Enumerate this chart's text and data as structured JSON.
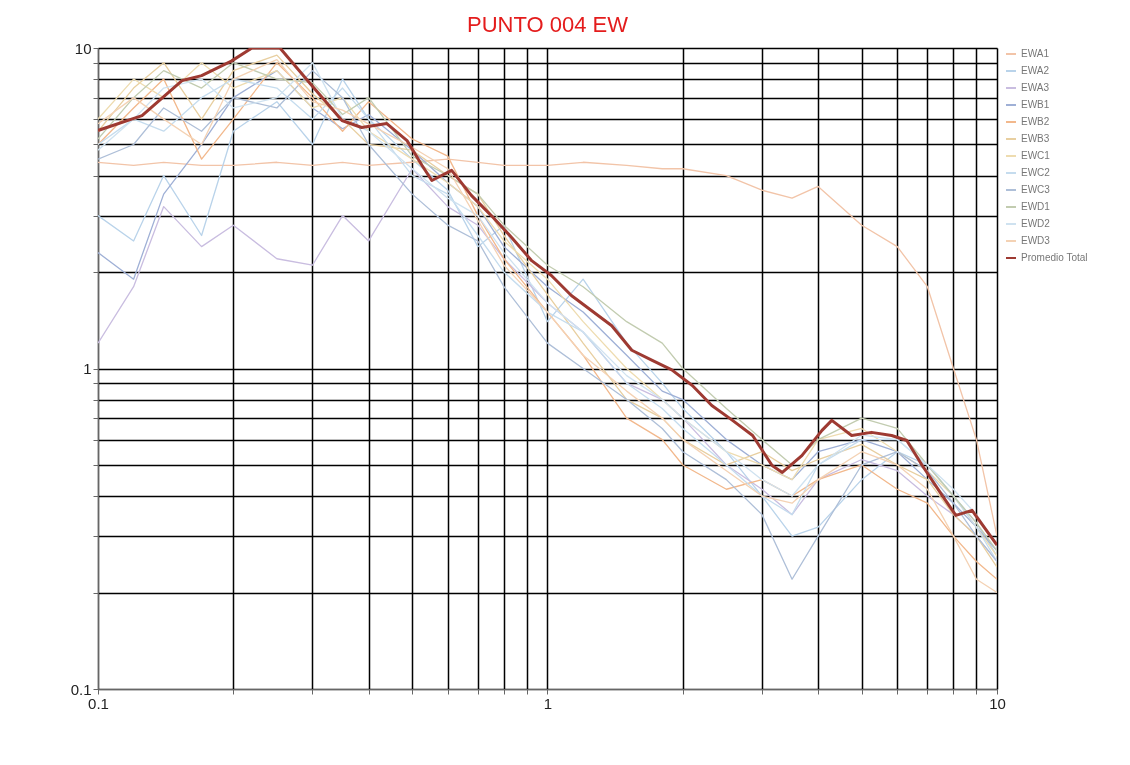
{
  "chart_data": {
    "type": "line",
    "title": "PUNTO 004 EW",
    "log": "xy",
    "grid": true,
    "legend": "right",
    "marker": "none",
    "line_style": "solid",
    "xlim": [
      0.1,
      10
    ],
    "ylim": [
      0.1,
      10
    ],
    "xticks": [
      0.1,
      {
        "value": 0.2,
        "label": null
      },
      {
        "value": 0.3,
        "label": null
      },
      {
        "value": 0.4,
        "label": null
      },
      {
        "value": 0.5,
        "label": null
      },
      {
        "value": 0.6,
        "label": null
      },
      {
        "value": 0.7,
        "label": null
      },
      {
        "value": 0.8,
        "label": null
      },
      {
        "value": 0.9,
        "label": null
      },
      1,
      {
        "value": 2,
        "label": null
      },
      {
        "value": 3,
        "label": null
      },
      {
        "value": 4,
        "label": null
      },
      {
        "value": 5,
        "label": null
      },
      {
        "value": 6,
        "label": null
      },
      {
        "value": 7,
        "label": null
      },
      {
        "value": 8,
        "label": null
      },
      {
        "value": 9,
        "label": null
      },
      10
    ],
    "yticks": [
      0.1,
      {
        "value": 0.2,
        "label": null
      },
      {
        "value": 0.3,
        "label": null
      },
      {
        "value": 0.4,
        "label": null
      },
      {
        "value": 0.5,
        "label": null
      },
      {
        "value": 0.6,
        "label": null
      },
      {
        "value": 0.7,
        "label": null
      },
      {
        "value": 0.8,
        "label": null
      },
      {
        "value": 0.9,
        "label": null
      },
      1,
      {
        "value": 2,
        "label": null
      },
      {
        "value": 3,
        "label": null
      },
      {
        "value": 4,
        "label": null
      },
      {
        "value": 5,
        "label": null
      },
      {
        "value": 6,
        "label": null
      },
      {
        "value": 7,
        "label": null
      },
      {
        "value": 8,
        "label": null
      },
      {
        "value": 9,
        "label": null
      },
      10
    ],
    "x": [
      0.1,
      0.12,
      0.14,
      0.17,
      0.2,
      0.25,
      0.3,
      0.35,
      0.4,
      0.5,
      0.6,
      0.7,
      0.8,
      1,
      1.2,
      1.5,
      1.8,
      2,
      2.5,
      3,
      3.5,
      4,
      5,
      6,
      7,
      8,
      9,
      10
    ],
    "series": [
      {
        "name": "EWA1",
        "color": "#f2c4a8",
        "values": [
          4.4,
          4.3,
          4.4,
          4.3,
          4.3,
          4.4,
          4.3,
          4.4,
          4.3,
          4.4,
          4.5,
          4.4,
          4.3,
          4.3,
          4.4,
          4.3,
          4.2,
          4.2,
          4.0,
          3.6,
          3.4,
          3.7,
          2.8,
          2.4,
          1.8,
          1.0,
          0.6,
          0.3
        ]
      },
      {
        "name": "EWA2",
        "color": "#b9d3ea",
        "values": [
          3.0,
          2.5,
          4.0,
          2.6,
          5.5,
          6.8,
          5.0,
          8.0,
          6.0,
          4.5,
          3.6,
          2.4,
          2.8,
          1.4,
          1.9,
          1.2,
          0.9,
          0.75,
          0.55,
          0.4,
          0.3,
          0.32,
          0.45,
          0.55,
          0.5,
          0.4,
          0.33,
          0.26
        ]
      },
      {
        "name": "EWA3",
        "color": "#c9bde0",
        "values": [
          1.2,
          1.8,
          3.2,
          2.4,
          2.8,
          2.2,
          2.1,
          3.0,
          2.5,
          4.2,
          3.2,
          2.8,
          2.2,
          1.6,
          1.3,
          0.9,
          0.8,
          0.7,
          0.5,
          0.42,
          0.35,
          0.45,
          0.52,
          0.48,
          0.4,
          0.35,
          0.3,
          0.25
        ]
      },
      {
        "name": "EWB1",
        "color": "#9fb0d6",
        "values": [
          2.3,
          1.9,
          3.5,
          5.0,
          7.0,
          8.5,
          6.5,
          5.6,
          6.2,
          4.8,
          3.8,
          3.2,
          2.4,
          1.8,
          1.5,
          1.1,
          0.85,
          0.8,
          0.6,
          0.5,
          0.45,
          0.55,
          0.6,
          0.55,
          0.45,
          0.38,
          0.32,
          0.27
        ]
      },
      {
        "name": "EWB2",
        "color": "#f2b88c",
        "values": [
          5.0,
          6.5,
          8.0,
          4.5,
          6.0,
          9.0,
          7.0,
          5.5,
          6.8,
          5.2,
          4.6,
          3.0,
          2.2,
          1.5,
          1.1,
          0.7,
          0.6,
          0.5,
          0.42,
          0.45,
          0.4,
          0.45,
          0.5,
          0.42,
          0.38,
          0.3,
          0.25,
          0.22
        ]
      },
      {
        "name": "EWB3",
        "color": "#e8cfa0",
        "values": [
          5.5,
          7.5,
          9.0,
          6.0,
          8.5,
          9.5,
          7.2,
          6.0,
          5.0,
          4.8,
          4.0,
          3.5,
          2.6,
          1.7,
          1.2,
          0.8,
          0.7,
          0.6,
          0.5,
          0.55,
          0.48,
          0.52,
          0.58,
          0.5,
          0.45,
          0.35,
          0.3,
          0.24
        ]
      },
      {
        "name": "EWC1",
        "color": "#eedcb0",
        "values": [
          6.0,
          8.0,
          7.0,
          9.0,
          7.5,
          8.5,
          6.5,
          7.0,
          5.5,
          4.5,
          3.8,
          3.2,
          2.5,
          1.9,
          1.4,
          1.0,
          0.8,
          0.7,
          0.55,
          0.5,
          0.45,
          0.6,
          0.65,
          0.55,
          0.48,
          0.4,
          0.32,
          0.26
        ]
      },
      {
        "name": "EWC2",
        "color": "#c5dcee",
        "values": [
          5.0,
          6.0,
          5.5,
          7.0,
          8.0,
          7.5,
          6.0,
          7.5,
          6.0,
          4.0,
          3.5,
          2.6,
          2.0,
          1.5,
          1.3,
          0.9,
          0.75,
          0.65,
          0.5,
          0.4,
          0.35,
          0.5,
          0.6,
          0.6,
          0.5,
          0.4,
          0.32,
          0.25
        ]
      },
      {
        "name": "EWC3",
        "color": "#aebfd8",
        "values": [
          4.5,
          5.0,
          6.5,
          5.5,
          7.0,
          6.5,
          8.5,
          7.0,
          5.0,
          3.5,
          2.8,
          2.5,
          1.8,
          1.2,
          1.0,
          0.8,
          0.65,
          0.55,
          0.45,
          0.35,
          0.22,
          0.3,
          0.5,
          0.55,
          0.48,
          0.38,
          0.3,
          0.25
        ]
      },
      {
        "name": "EWD1",
        "color": "#c2ccb0",
        "values": [
          5.2,
          7.0,
          8.5,
          7.5,
          9.0,
          8.0,
          7.8,
          6.2,
          7.0,
          4.6,
          4.0,
          3.5,
          2.8,
          2.1,
          1.8,
          1.4,
          1.2,
          1.0,
          0.75,
          0.6,
          0.5,
          0.6,
          0.7,
          0.65,
          0.5,
          0.4,
          0.33,
          0.27
        ]
      },
      {
        "name": "EWD2",
        "color": "#cfe2f0",
        "values": [
          4.8,
          6.0,
          7.5,
          8.0,
          6.5,
          7.0,
          9.0,
          6.0,
          5.5,
          4.2,
          3.4,
          3.0,
          2.3,
          1.6,
          1.3,
          0.95,
          0.8,
          0.7,
          0.55,
          0.45,
          0.4,
          0.5,
          0.62,
          0.6,
          0.5,
          0.42,
          0.35,
          0.28
        ]
      },
      {
        "name": "EWD3",
        "color": "#f4d2b4",
        "values": [
          5.8,
          7.0,
          6.0,
          5.0,
          8.0,
          9.2,
          6.8,
          6.4,
          5.8,
          4.9,
          4.2,
          2.9,
          2.1,
          1.5,
          1.1,
          0.85,
          0.7,
          0.6,
          0.48,
          0.4,
          0.38,
          0.45,
          0.55,
          0.5,
          0.42,
          0.3,
          0.22,
          0.2
        ]
      },
      {
        "name": "Promedio Total",
        "color": "#9e3a32",
        "x": [
          0.1,
          0.1253,
          0.154,
          0.17,
          0.198,
          0.22,
          0.254,
          0.299,
          0.349,
          0.386,
          0.439,
          0.487,
          0.526,
          0.553,
          0.612,
          0.677,
          0.75,
          0.833,
          0.922,
          1.02,
          1.13,
          1.25,
          1.39,
          1.54,
          1.71,
          1.89,
          2.1,
          2.32,
          2.58,
          2.86,
          3.16,
          3.33,
          3.68,
          4.08,
          4.29,
          4.75,
          5.26,
          5.83,
          6.3,
          6.82,
          7.55,
          8.1,
          8.8,
          10
        ],
        "values": [
          5.53,
          6.15,
          7.92,
          8.2,
          9.1,
          10,
          10,
          7.64,
          5.94,
          5.65,
          5.81,
          5.14,
          4.3,
          3.86,
          4.15,
          3.47,
          3.0,
          2.56,
          2.17,
          1.95,
          1.69,
          1.52,
          1.36,
          1.14,
          1.06,
          0.99,
          0.885,
          0.767,
          0.689,
          0.618,
          0.498,
          0.474,
          0.535,
          0.641,
          0.689,
          0.618,
          0.632,
          0.618,
          0.596,
          0.498,
          0.402,
          0.348,
          0.361,
          0.281
        ]
      }
    ]
  }
}
